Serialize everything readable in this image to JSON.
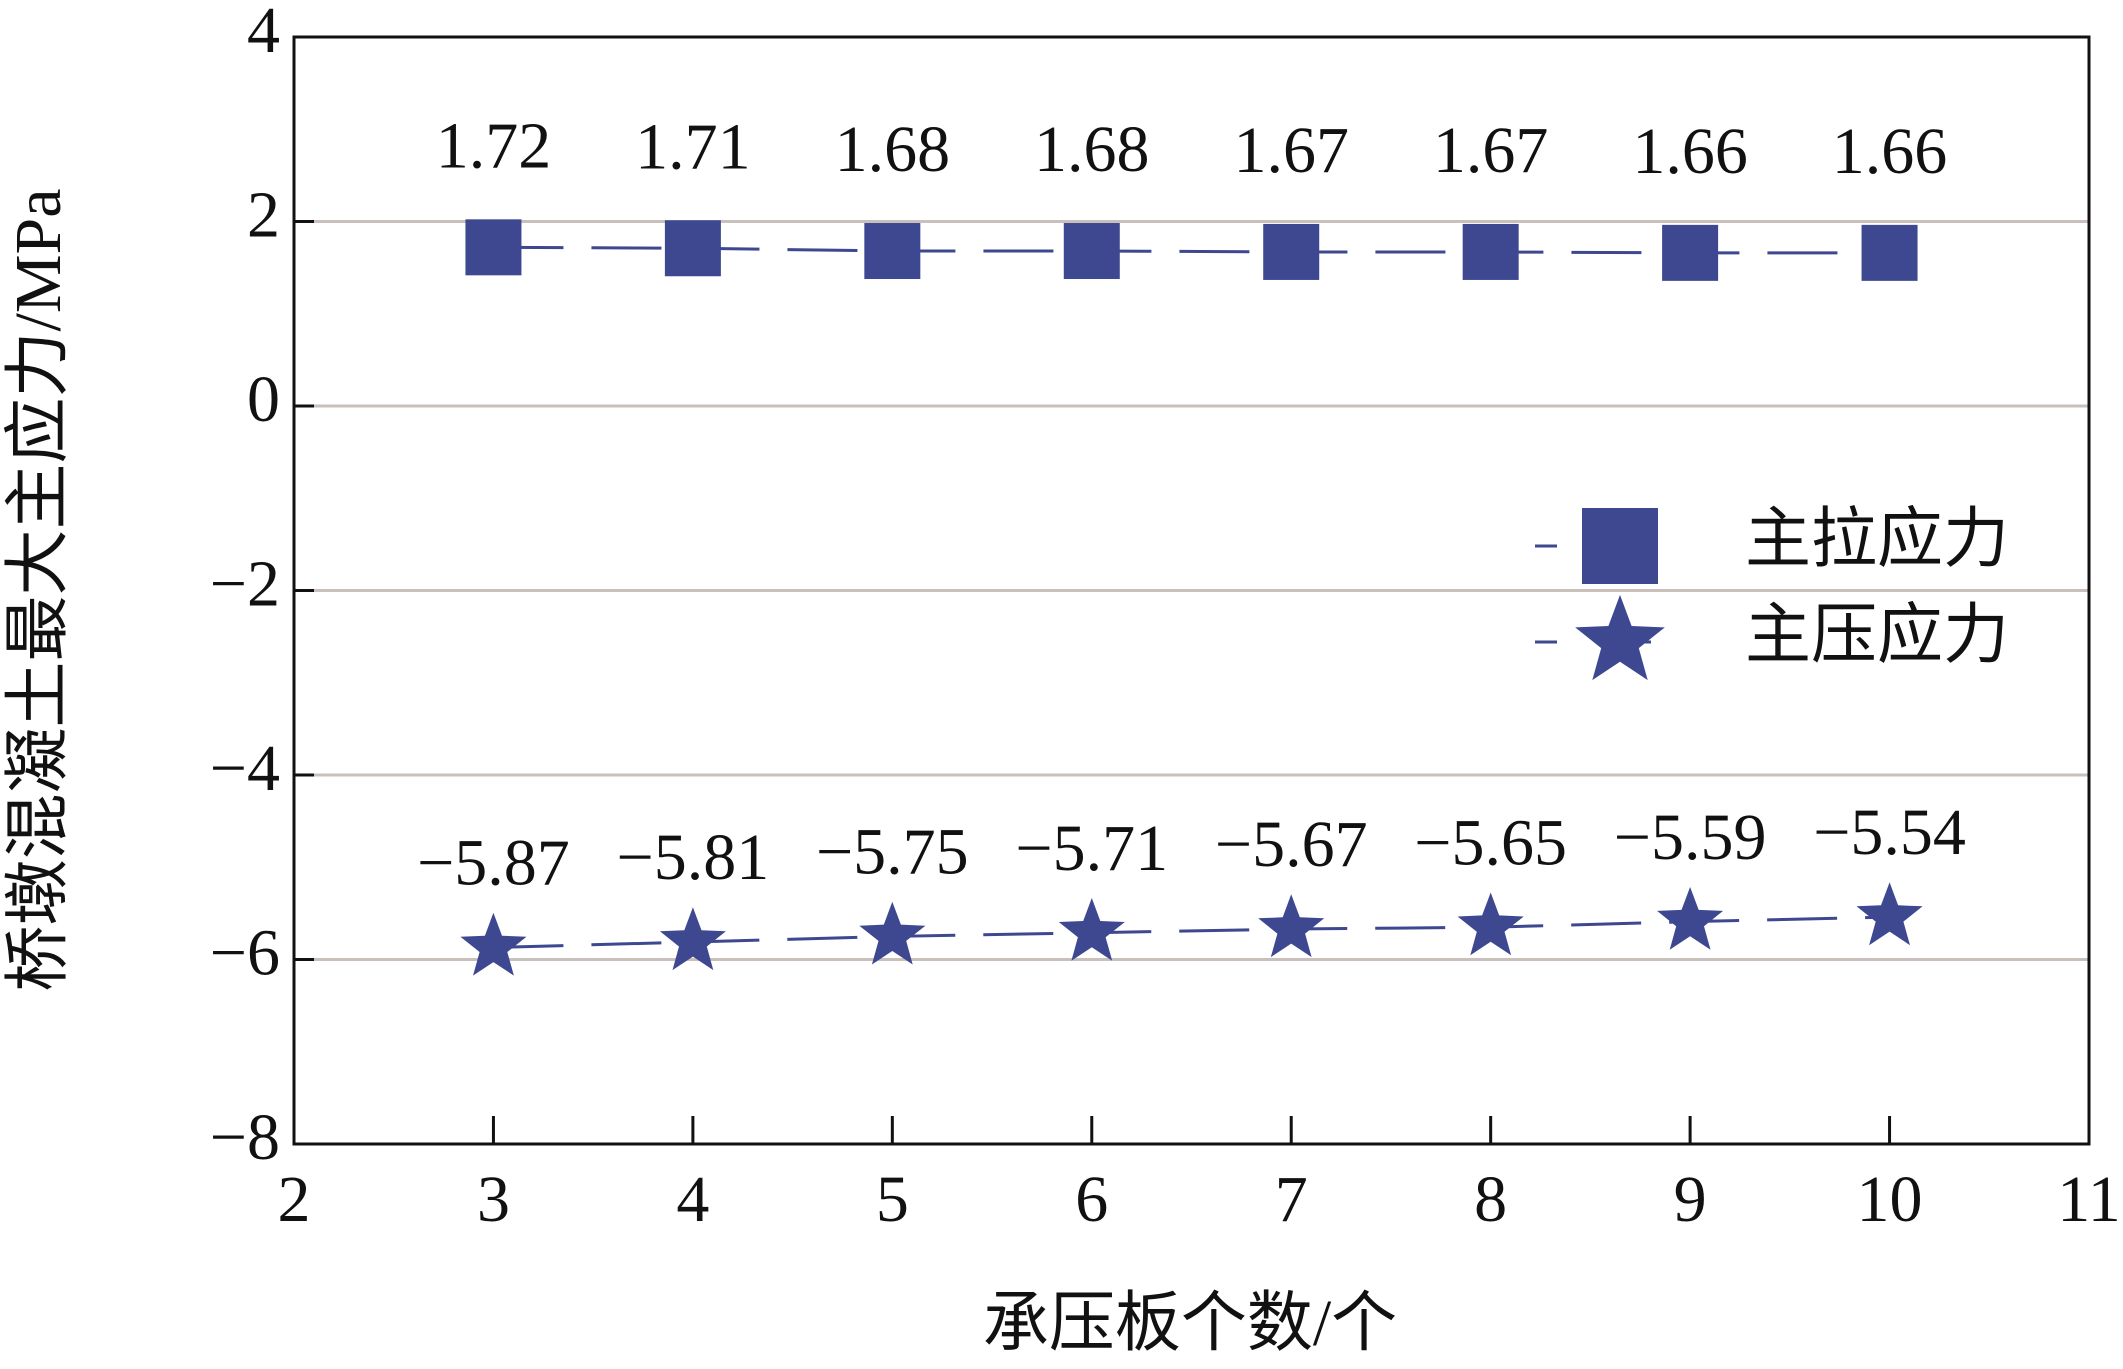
{
  "chart_data": {
    "type": "line",
    "x_label": "承压板个数/个",
    "y_label": "桥墩混凝土最大主应力/MPa",
    "x": [
      3,
      4,
      5,
      6,
      7,
      8,
      9,
      10
    ],
    "series": [
      {
        "name": "主拉应力",
        "color": "#3d4891",
        "marker": "square",
        "values": [
          1.72,
          1.71,
          1.68,
          1.68,
          1.67,
          1.67,
          1.66,
          1.66
        ]
      },
      {
        "name": "主压应力",
        "color": "#3d4891",
        "marker": "star",
        "values": [
          -5.87,
          -5.81,
          -5.75,
          -5.71,
          -5.67,
          -5.65,
          -5.59,
          -5.54
        ],
        "value_labels": [
          "−5.87",
          "−5.81",
          "−5.75",
          "−5.71",
          "−5.67",
          "−5.65",
          "−5.59",
          "−5.54"
        ]
      }
    ],
    "xlim": [
      2,
      11
    ],
    "xticks": [
      2,
      3,
      4,
      5,
      6,
      7,
      8,
      9,
      10,
      11
    ],
    "ylim": [
      -8,
      4
    ],
    "yticks": [
      {
        "value": -8,
        "label": "−8"
      },
      {
        "value": -6,
        "label": "−6"
      },
      {
        "value": -4,
        "label": "−4"
      },
      {
        "value": -2,
        "label": "−2"
      },
      0,
      2,
      4
    ],
    "grid": true,
    "legend": "right"
  }
}
